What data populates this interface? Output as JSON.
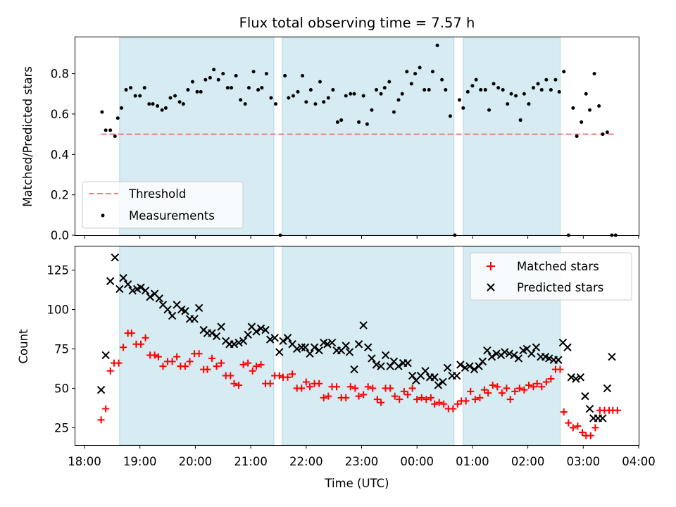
{
  "chart_data": [
    {
      "type": "scatter",
      "title": "Flux total observing time = 7.57 h",
      "ylabel": "Matched/Predicted stars",
      "xlim": [
        "18:00",
        "04:00"
      ],
      "ylim": [
        0,
        0.98
      ],
      "yticks": [
        "0.0",
        "0.2",
        "0.4",
        "0.6",
        "0.8"
      ],
      "legend": {
        "placement": "lower-left",
        "entries": [
          "Threshold",
          "Measurements"
        ]
      },
      "shaded_intervals": [
        [
          "18:38",
          "21:25"
        ],
        [
          "21:34",
          "00:40"
        ],
        [
          "00:50",
          "02:35"
        ]
      ],
      "threshold": {
        "name": "Threshold",
        "value": 0.5,
        "x_range": [
          "18:18",
          "03:35"
        ],
        "color": "#f08080"
      },
      "series": [
        {
          "name": "Measurements",
          "color": "#000000",
          "x": [
            "18:19",
            "18:23",
            "18:28",
            "18:33",
            "18:36",
            "18:40",
            "18:45",
            "18:50",
            "18:55",
            "19:00",
            "19:05",
            "19:10",
            "19:14",
            "19:19",
            "19:24",
            "19:28",
            "19:33",
            "19:38",
            "19:43",
            "19:47",
            "19:52",
            "19:57",
            "20:02",
            "20:06",
            "20:11",
            "20:16",
            "20:20",
            "20:25",
            "20:30",
            "20:35",
            "20:39",
            "20:44",
            "20:49",
            "20:54",
            "20:58",
            "21:03",
            "21:08",
            "21:12",
            "21:17",
            "21:22",
            "21:27",
            "21:32",
            "21:37",
            "21:41",
            "21:46",
            "21:51",
            "21:56",
            "22:00",
            "22:05",
            "22:10",
            "22:15",
            "22:19",
            "22:24",
            "22:29",
            "22:34",
            "22:38",
            "22:43",
            "22:48",
            "22:52",
            "22:57",
            "23:02",
            "23:06",
            "23:11",
            "23:16",
            "23:21",
            "23:25",
            "23:30",
            "23:35",
            "23:40",
            "23:44",
            "23:49",
            "23:54",
            "23:58",
            "00:03",
            "00:08",
            "00:13",
            "00:17",
            "00:22",
            "00:27",
            "00:31",
            "00:36",
            "00:41",
            "00:46",
            "00:50",
            "00:55",
            "01:00",
            "01:04",
            "01:09",
            "01:14",
            "01:18",
            "01:23",
            "01:28",
            "01:33",
            "01:38",
            "01:42",
            "01:47",
            "01:52",
            "01:56",
            "02:01",
            "02:06",
            "02:11",
            "02:15",
            "02:20",
            "02:25",
            "02:30",
            "02:34",
            "02:39",
            "02:44",
            "02:49",
            "02:53",
            "02:58",
            "03:03",
            "03:07",
            "03:12",
            "03:17",
            "03:21",
            "03:26",
            "03:31",
            "03:35"
          ],
          "y": [
            0.61,
            0.52,
            0.52,
            0.49,
            0.58,
            0.63,
            0.72,
            0.73,
            0.69,
            0.69,
            0.73,
            0.65,
            0.65,
            0.64,
            0.62,
            0.63,
            0.68,
            0.69,
            0.66,
            0.65,
            0.72,
            0.76,
            0.71,
            0.71,
            0.77,
            0.78,
            0.82,
            0.77,
            0.8,
            0.73,
            0.73,
            0.79,
            0.67,
            0.65,
            0.73,
            0.81,
            0.72,
            0.73,
            0.8,
            0.68,
            0.65,
            0.0,
            0.79,
            0.68,
            0.69,
            0.71,
            0.79,
            0.66,
            0.72,
            0.65,
            0.76,
            0.66,
            0.68,
            0.72,
            0.56,
            0.57,
            0.69,
            0.7,
            0.7,
            0.56,
            0.69,
            0.55,
            0.62,
            0.72,
            0.7,
            0.73,
            0.76,
            0.61,
            0.67,
            0.7,
            0.81,
            0.75,
            0.8,
            0.83,
            0.72,
            0.72,
            0.81,
            0.94,
            0.77,
            0.72,
            0.59,
            0.0,
            0.67,
            0.63,
            0.71,
            0.74,
            0.77,
            0.72,
            0.72,
            0.62,
            0.75,
            0.73,
            0.72,
            0.65,
            0.7,
            0.69,
            0.57,
            0.7,
            0.65,
            0.73,
            0.75,
            0.72,
            0.77,
            0.72,
            0.77,
            0.71,
            0.81,
            0.0,
            0.63,
            0.49,
            0.56,
            0.7,
            0.62,
            0.8,
            0.64,
            0.5,
            0.51,
            0.0,
            0.0
          ]
        }
      ]
    },
    {
      "type": "scatter",
      "xlabel": "Time (UTC)",
      "ylabel": "Count",
      "xlim": [
        "18:00",
        "04:00"
      ],
      "ylim": [
        14,
        140
      ],
      "xticks": [
        "18:00",
        "19:00",
        "20:00",
        "21:00",
        "22:00",
        "23:00",
        "00:00",
        "01:00",
        "02:00",
        "03:00",
        "04:00"
      ],
      "yticks": [
        "25",
        "50",
        "75",
        "100",
        "125"
      ],
      "legend": {
        "placement": "upper-right",
        "entries": [
          "Matched stars",
          "Predicted stars"
        ]
      },
      "shaded_intervals": [
        [
          "18:38",
          "21:25"
        ],
        [
          "21:34",
          "00:40"
        ],
        [
          "00:50",
          "02:35"
        ]
      ],
      "series": [
        {
          "name": "Matched stars",
          "marker": "+",
          "color": "#ff0000",
          "x": [
            "18:18",
            "18:23",
            "18:28",
            "18:32",
            "18:37",
            "18:42",
            "18:47",
            "18:51",
            "18:56",
            "19:01",
            "19:06",
            "19:11",
            "19:16",
            "19:20",
            "19:25",
            "19:30",
            "19:35",
            "19:40",
            "19:44",
            "19:49",
            "19:54",
            "19:59",
            "20:04",
            "20:09",
            "20:13",
            "20:18",
            "20:23",
            "20:28",
            "20:33",
            "20:38",
            "20:42",
            "20:47",
            "20:52",
            "20:57",
            "21:02",
            "21:06",
            "21:11",
            "21:16",
            "21:21",
            "21:26",
            "21:31",
            "21:35",
            "21:40",
            "21:45",
            "21:50",
            "21:55",
            "22:00",
            "22:04",
            "22:09",
            "22:14",
            "22:19",
            "22:24",
            "22:28",
            "22:33",
            "22:38",
            "22:43",
            "22:48",
            "22:53",
            "22:57",
            "23:02",
            "23:07",
            "23:12",
            "23:17",
            "23:21",
            "23:26",
            "23:31",
            "23:36",
            "23:41",
            "23:46",
            "23:50",
            "23:55",
            "00:00",
            "00:05",
            "00:10",
            "00:15",
            "00:19",
            "00:24",
            "00:29",
            "00:34",
            "00:39",
            "00:44",
            "00:48",
            "00:53",
            "00:58",
            "01:03",
            "01:08",
            "01:13",
            "01:17",
            "01:22",
            "01:27",
            "01:32",
            "01:37",
            "01:41",
            "01:46",
            "01:51",
            "01:56",
            "02:01",
            "02:06",
            "02:10",
            "02:15",
            "02:20",
            "02:25",
            "02:30",
            "02:35",
            "02:39",
            "02:44",
            "02:49",
            "02:54",
            "02:59",
            "03:03",
            "03:08",
            "03:13",
            "03:18",
            "03:23",
            "03:28",
            "03:32",
            "03:37"
          ],
          "y": [
            30,
            37,
            61,
            66,
            66,
            76,
            85,
            85,
            78,
            78,
            82,
            71,
            71,
            70,
            64,
            67,
            67,
            70,
            64,
            64,
            67,
            72,
            72,
            62,
            62,
            69,
            64,
            66,
            58,
            58,
            53,
            52,
            65,
            66,
            61,
            64,
            65,
            53,
            53,
            58,
            58,
            57,
            57,
            59,
            50,
            50,
            54,
            51,
            53,
            53,
            44,
            45,
            51,
            51,
            44,
            44,
            51,
            50,
            45,
            46,
            51,
            50,
            43,
            41,
            50,
            50,
            45,
            43,
            48,
            46,
            50,
            43,
            44,
            43,
            44,
            40,
            41,
            40,
            37,
            37,
            40,
            42,
            42,
            48,
            43,
            44,
            49,
            47,
            52,
            51,
            47,
            50,
            43,
            48,
            50,
            49,
            52,
            51,
            53,
            51,
            54,
            56,
            62,
            62,
            35,
            28,
            25,
            26,
            22,
            20,
            20,
            25,
            36,
            36,
            36,
            36,
            36
          ],
          "y_note": ""
        },
        {
          "name": "Predicted stars",
          "marker": "x",
          "color": "#000000",
          "x": [
            "18:18",
            "18:23",
            "18:28",
            "18:33",
            "18:38",
            "18:42",
            "18:47",
            "18:52",
            "18:57",
            "19:01",
            "19:06",
            "19:11",
            "19:16",
            "19:21",
            "19:25",
            "19:30",
            "19:35",
            "19:40",
            "19:45",
            "19:49",
            "19:54",
            "19:59",
            "20:04",
            "20:09",
            "20:13",
            "20:18",
            "20:23",
            "20:28",
            "20:33",
            "20:37",
            "20:42",
            "20:47",
            "20:52",
            "20:57",
            "21:01",
            "21:06",
            "21:11",
            "21:16",
            "21:21",
            "21:26",
            "21:31",
            "21:35",
            "21:40",
            "21:45",
            "21:50",
            "21:55",
            "21:59",
            "22:04",
            "22:09",
            "22:14",
            "22:19",
            "22:23",
            "22:28",
            "22:33",
            "22:38",
            "22:43",
            "22:47",
            "22:52",
            "22:57",
            "23:02",
            "23:07",
            "23:11",
            "23:16",
            "23:21",
            "23:26",
            "23:31",
            "23:35",
            "23:40",
            "23:45",
            "23:50",
            "23:55",
            "23:59",
            "00:04",
            "00:09",
            "00:14",
            "00:19",
            "00:23",
            "00:28",
            "00:33",
            "00:38",
            "00:43",
            "00:47",
            "00:52",
            "00:57",
            "01:02",
            "01:07",
            "01:11",
            "01:16",
            "01:21",
            "01:26",
            "01:31",
            "01:35",
            "01:40",
            "01:45",
            "01:50",
            "01:55",
            "01:59",
            "02:04",
            "02:09",
            "02:14",
            "02:19",
            "02:23",
            "02:28",
            "02:33",
            "02:38",
            "02:43",
            "02:47",
            "02:52",
            "02:57",
            "03:02",
            "03:07",
            "03:11",
            "03:16",
            "03:21",
            "03:26",
            "03:31"
          ],
          "y": [
            49,
            71,
            118,
            133,
            113,
            120,
            116,
            112,
            113,
            114,
            112,
            108,
            110,
            107,
            103,
            100,
            96,
            103,
            100,
            99,
            94,
            94,
            101,
            87,
            85,
            85,
            83,
            89,
            80,
            78,
            78,
            79,
            80,
            84,
            89,
            86,
            88,
            87,
            81,
            82,
            73,
            80,
            82,
            78,
            75,
            76,
            76,
            72,
            76,
            74,
            79,
            78,
            79,
            74,
            74,
            77,
            73,
            62,
            78,
            90,
            76,
            69,
            65,
            64,
            71,
            64,
            67,
            64,
            66,
            66,
            58,
            55,
            58,
            61,
            57,
            57,
            52,
            54,
            63,
            58,
            58,
            65,
            63,
            64,
            62,
            64,
            67,
            74,
            70,
            72,
            71,
            73,
            72,
            71,
            69,
            74,
            75,
            72,
            76,
            70,
            70,
            69,
            68,
            68,
            79,
            76,
            57,
            56,
            57,
            45,
            37,
            31,
            31,
            31,
            50,
            70
          ]
        }
      ]
    }
  ]
}
